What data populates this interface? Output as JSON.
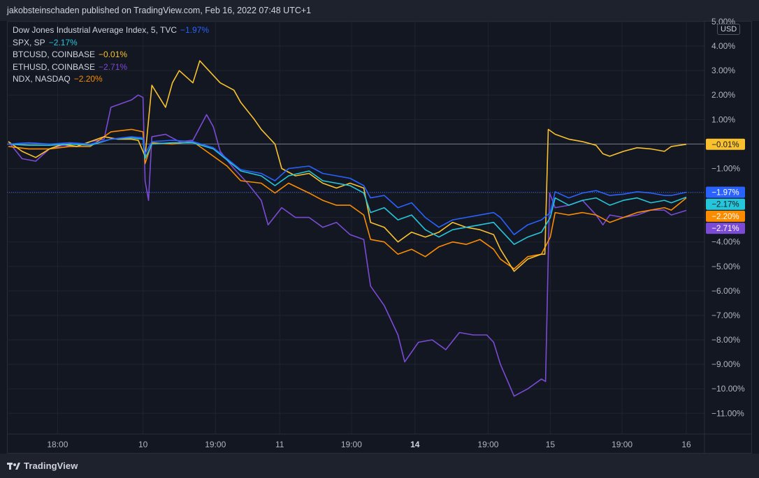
{
  "header": {
    "text": "jakobsteinschaden published on TradingView.com, Feb 16, 2022 07:48 UTC+1"
  },
  "footer": {
    "logo_text": "TradingView"
  },
  "currency_label": "USD",
  "chart_data": {
    "type": "line",
    "ylabel_unit": "%",
    "ylim": [
      -11.9,
      5.0
    ],
    "y_ticks": [
      "5.00%",
      "4.00%",
      "3.00%",
      "2.00%",
      "1.00%",
      "-1.00%",
      "-4.00%",
      "-5.00%",
      "-6.00%",
      "-7.00%",
      "-8.00%",
      "-9.00%",
      "-10.00%",
      "-11.00%"
    ],
    "y_tick_values": [
      5,
      4,
      3,
      2,
      1,
      -1,
      -4,
      -5,
      -6,
      -7,
      -8,
      -9,
      -10,
      -11
    ],
    "x_ticks": [
      {
        "label": "18:00",
        "t": 0.072,
        "bold": false
      },
      {
        "label": "10",
        "t": 0.197,
        "bold": false
      },
      {
        "label": "19:00",
        "t": 0.303,
        "bold": false
      },
      {
        "label": "11",
        "t": 0.397,
        "bold": false
      },
      {
        "label": "19:00",
        "t": 0.502,
        "bold": false
      },
      {
        "label": "14",
        "t": 0.595,
        "bold": true
      },
      {
        "label": "19:00",
        "t": 0.702,
        "bold": false
      },
      {
        "label": "15",
        "t": 0.793,
        "bold": false
      },
      {
        "label": "19:00",
        "t": 0.898,
        "bold": false
      },
      {
        "label": "16",
        "t": 0.992,
        "bold": false
      }
    ],
    "series": [
      {
        "name": "Dow Jones Industrial Average Index, 5, TVC",
        "last_label": "−1.97%",
        "last": -1.97,
        "color": "#2962ff",
        "points": [
          [
            0,
            0
          ],
          [
            0.03,
            0.05
          ],
          [
            0.06,
            0
          ],
          [
            0.09,
            0.05
          ],
          [
            0.12,
            0
          ],
          [
            0.15,
            0.2
          ],
          [
            0.18,
            0.3
          ],
          [
            0.197,
            0.25
          ],
          [
            0.2,
            -0.4
          ],
          [
            0.21,
            0.1
          ],
          [
            0.24,
            0.15
          ],
          [
            0.27,
            0.1
          ],
          [
            0.3,
            -0.15
          ],
          [
            0.32,
            -0.6
          ],
          [
            0.34,
            -1.05
          ],
          [
            0.37,
            -1.2
          ],
          [
            0.39,
            -1.5
          ],
          [
            0.41,
            -1.0
          ],
          [
            0.44,
            -0.9
          ],
          [
            0.46,
            -1.2
          ],
          [
            0.48,
            -1.3
          ],
          [
            0.5,
            -1.4
          ],
          [
            0.52,
            -1.7
          ],
          [
            0.53,
            -2.2
          ],
          [
            0.55,
            -2.1
          ],
          [
            0.57,
            -2.6
          ],
          [
            0.59,
            -2.4
          ],
          [
            0.61,
            -3.0
          ],
          [
            0.63,
            -3.4
          ],
          [
            0.65,
            -3.1
          ],
          [
            0.67,
            -3.0
          ],
          [
            0.69,
            -2.9
          ],
          [
            0.71,
            -2.8
          ],
          [
            0.72,
            -3.0
          ],
          [
            0.74,
            -3.7
          ],
          [
            0.76,
            -3.3
          ],
          [
            0.78,
            -3.1
          ],
          [
            0.793,
            -2.8
          ],
          [
            0.8,
            -1.95
          ],
          [
            0.82,
            -2.2
          ],
          [
            0.84,
            -2.0
          ],
          [
            0.86,
            -1.9
          ],
          [
            0.88,
            -2.1
          ],
          [
            0.9,
            -2.05
          ],
          [
            0.92,
            -1.95
          ],
          [
            0.94,
            -2.0
          ],
          [
            0.96,
            -2.1
          ],
          [
            0.97,
            -2.1
          ],
          [
            0.992,
            -1.97
          ]
        ]
      },
      {
        "name": "SPX, SP",
        "last_label": "−2.17%",
        "last": -2.17,
        "color": "#26c6da",
        "points": [
          [
            0,
            0
          ],
          [
            0.03,
            -0.05
          ],
          [
            0.06,
            -0.05
          ],
          [
            0.09,
            0
          ],
          [
            0.12,
            -0.05
          ],
          [
            0.15,
            0.2
          ],
          [
            0.18,
            0.25
          ],
          [
            0.197,
            0.2
          ],
          [
            0.2,
            -0.6
          ],
          [
            0.21,
            0
          ],
          [
            0.24,
            0.05
          ],
          [
            0.27,
            0.05
          ],
          [
            0.3,
            -0.2
          ],
          [
            0.32,
            -0.65
          ],
          [
            0.34,
            -1.1
          ],
          [
            0.37,
            -1.3
          ],
          [
            0.39,
            -1.7
          ],
          [
            0.41,
            -1.3
          ],
          [
            0.44,
            -1.1
          ],
          [
            0.46,
            -1.5
          ],
          [
            0.48,
            -1.6
          ],
          [
            0.5,
            -1.7
          ],
          [
            0.52,
            -2.0
          ],
          [
            0.53,
            -2.8
          ],
          [
            0.55,
            -2.6
          ],
          [
            0.57,
            -3.1
          ],
          [
            0.59,
            -2.9
          ],
          [
            0.61,
            -3.5
          ],
          [
            0.63,
            -3.8
          ],
          [
            0.65,
            -3.5
          ],
          [
            0.67,
            -3.4
          ],
          [
            0.69,
            -3.3
          ],
          [
            0.71,
            -3.2
          ],
          [
            0.72,
            -3.5
          ],
          [
            0.74,
            -4.1
          ],
          [
            0.76,
            -3.8
          ],
          [
            0.78,
            -3.6
          ],
          [
            0.793,
            -3.0
          ],
          [
            0.8,
            -2.2
          ],
          [
            0.82,
            -2.5
          ],
          [
            0.84,
            -2.3
          ],
          [
            0.86,
            -2.2
          ],
          [
            0.88,
            -2.5
          ],
          [
            0.9,
            -2.3
          ],
          [
            0.92,
            -2.2
          ],
          [
            0.94,
            -2.4
          ],
          [
            0.96,
            -2.3
          ],
          [
            0.97,
            -2.4
          ],
          [
            0.992,
            -2.17
          ]
        ]
      },
      {
        "name": "BTCUSD, COINBASE",
        "last_label": "−0.01%",
        "last": -0.01,
        "color": "#f9c12e",
        "points": [
          [
            0,
            0.1
          ],
          [
            0.02,
            -0.3
          ],
          [
            0.04,
            -0.55
          ],
          [
            0.06,
            -0.2
          ],
          [
            0.08,
            0
          ],
          [
            0.1,
            -0.1
          ],
          [
            0.12,
            0.1
          ],
          [
            0.14,
            0.3
          ],
          [
            0.16,
            0.2
          ],
          [
            0.18,
            0.2
          ],
          [
            0.19,
            0.15
          ],
          [
            0.2,
            -0.5
          ],
          [
            0.21,
            2.4
          ],
          [
            0.23,
            1.5
          ],
          [
            0.24,
            2.5
          ],
          [
            0.25,
            3.0
          ],
          [
            0.27,
            2.5
          ],
          [
            0.28,
            3.4
          ],
          [
            0.29,
            3.1
          ],
          [
            0.3,
            2.8
          ],
          [
            0.31,
            2.5
          ],
          [
            0.33,
            2.2
          ],
          [
            0.34,
            1.7
          ],
          [
            0.36,
            1.0
          ],
          [
            0.37,
            0.6
          ],
          [
            0.39,
            0.0
          ],
          [
            0.4,
            -1.0
          ],
          [
            0.42,
            -1.3
          ],
          [
            0.44,
            -1.2
          ],
          [
            0.46,
            -1.6
          ],
          [
            0.48,
            -1.8
          ],
          [
            0.5,
            -1.6
          ],
          [
            0.52,
            -1.8
          ],
          [
            0.53,
            -3.2
          ],
          [
            0.55,
            -3.4
          ],
          [
            0.57,
            -4.0
          ],
          [
            0.59,
            -3.6
          ],
          [
            0.61,
            -3.8
          ],
          [
            0.63,
            -3.6
          ],
          [
            0.65,
            -3.2
          ],
          [
            0.67,
            -3.4
          ],
          [
            0.69,
            -3.5
          ],
          [
            0.71,
            -3.7
          ],
          [
            0.72,
            -4.3
          ],
          [
            0.74,
            -5.2
          ],
          [
            0.76,
            -4.7
          ],
          [
            0.78,
            -4.5
          ],
          [
            0.785,
            -4.5
          ],
          [
            0.79,
            0.6
          ],
          [
            0.8,
            0.4
          ],
          [
            0.82,
            0.2
          ],
          [
            0.84,
            0.1
          ],
          [
            0.86,
            -0.05
          ],
          [
            0.87,
            -0.4
          ],
          [
            0.88,
            -0.5
          ],
          [
            0.9,
            -0.3
          ],
          [
            0.92,
            -0.15
          ],
          [
            0.94,
            -0.2
          ],
          [
            0.96,
            -0.3
          ],
          [
            0.97,
            -0.1
          ],
          [
            0.992,
            -0.01
          ]
        ]
      },
      {
        "name": "ETHUSD, COINBASE",
        "last_label": "−2.71%",
        "last": -2.71,
        "color": "#7b4bd6",
        "points": [
          [
            0,
            0.1
          ],
          [
            0.02,
            -0.6
          ],
          [
            0.04,
            -0.7
          ],
          [
            0.06,
            -0.2
          ],
          [
            0.08,
            -0.05
          ],
          [
            0.1,
            -0.1
          ],
          [
            0.12,
            0.1
          ],
          [
            0.14,
            0.2
          ],
          [
            0.15,
            1.5
          ],
          [
            0.16,
            1.6
          ],
          [
            0.18,
            1.8
          ],
          [
            0.19,
            2.0
          ],
          [
            0.197,
            1.9
          ],
          [
            0.2,
            -1.5
          ],
          [
            0.205,
            -2.3
          ],
          [
            0.21,
            0.3
          ],
          [
            0.23,
            0.4
          ],
          [
            0.25,
            0.1
          ],
          [
            0.27,
            0.15
          ],
          [
            0.29,
            1.2
          ],
          [
            0.3,
            0.7
          ],
          [
            0.31,
            -0.3
          ],
          [
            0.33,
            -1.0
          ],
          [
            0.35,
            -1.6
          ],
          [
            0.37,
            -2.3
          ],
          [
            0.38,
            -3.3
          ],
          [
            0.4,
            -2.6
          ],
          [
            0.42,
            -3.0
          ],
          [
            0.44,
            -3.0
          ],
          [
            0.46,
            -3.4
          ],
          [
            0.48,
            -3.2
          ],
          [
            0.5,
            -3.7
          ],
          [
            0.52,
            -3.9
          ],
          [
            0.53,
            -5.8
          ],
          [
            0.55,
            -6.6
          ],
          [
            0.57,
            -7.8
          ],
          [
            0.58,
            -8.9
          ],
          [
            0.6,
            -8.1
          ],
          [
            0.62,
            -8.0
          ],
          [
            0.64,
            -8.4
          ],
          [
            0.66,
            -7.7
          ],
          [
            0.68,
            -7.8
          ],
          [
            0.7,
            -7.8
          ],
          [
            0.71,
            -8.1
          ],
          [
            0.72,
            -9.0
          ],
          [
            0.74,
            -10.3
          ],
          [
            0.76,
            -10.0
          ],
          [
            0.78,
            -9.6
          ],
          [
            0.786,
            -9.7
          ],
          [
            0.792,
            -2.0
          ],
          [
            0.8,
            -2.6
          ],
          [
            0.82,
            -2.5
          ],
          [
            0.84,
            -2.3
          ],
          [
            0.86,
            -2.9
          ],
          [
            0.87,
            -3.3
          ],
          [
            0.88,
            -2.9
          ],
          [
            0.9,
            -3.0
          ],
          [
            0.92,
            -2.9
          ],
          [
            0.94,
            -2.7
          ],
          [
            0.96,
            -2.7
          ],
          [
            0.97,
            -2.9
          ],
          [
            0.992,
            -2.71
          ]
        ]
      },
      {
        "name": "NDX, NASDAQ",
        "last_label": "−2.20%",
        "last": -2.2,
        "color": "#fb8c00",
        "points": [
          [
            0,
            -0.1
          ],
          [
            0.03,
            -0.2
          ],
          [
            0.06,
            -0.2
          ],
          [
            0.09,
            -0.1
          ],
          [
            0.12,
            -0.1
          ],
          [
            0.15,
            0.5
          ],
          [
            0.18,
            0.6
          ],
          [
            0.197,
            0.5
          ],
          [
            0.2,
            -0.8
          ],
          [
            0.21,
            0.05
          ],
          [
            0.24,
            0.0
          ],
          [
            0.27,
            0.1
          ],
          [
            0.3,
            -0.5
          ],
          [
            0.32,
            -0.9
          ],
          [
            0.34,
            -1.5
          ],
          [
            0.37,
            -1.6
          ],
          [
            0.39,
            -2.0
          ],
          [
            0.41,
            -1.6
          ],
          [
            0.44,
            -2.0
          ],
          [
            0.46,
            -2.3
          ],
          [
            0.48,
            -2.5
          ],
          [
            0.5,
            -2.5
          ],
          [
            0.52,
            -2.9
          ],
          [
            0.53,
            -3.9
          ],
          [
            0.55,
            -4.0
          ],
          [
            0.57,
            -4.5
          ],
          [
            0.59,
            -4.3
          ],
          [
            0.61,
            -4.6
          ],
          [
            0.63,
            -4.2
          ],
          [
            0.65,
            -4.0
          ],
          [
            0.67,
            -4.1
          ],
          [
            0.69,
            -3.9
          ],
          [
            0.71,
            -4.3
          ],
          [
            0.72,
            -4.7
          ],
          [
            0.74,
            -5.1
          ],
          [
            0.76,
            -4.6
          ],
          [
            0.78,
            -4.5
          ],
          [
            0.793,
            -3.8
          ],
          [
            0.8,
            -2.8
          ],
          [
            0.82,
            -2.9
          ],
          [
            0.84,
            -2.8
          ],
          [
            0.86,
            -2.9
          ],
          [
            0.88,
            -3.2
          ],
          [
            0.9,
            -3.0
          ],
          [
            0.92,
            -2.8
          ],
          [
            0.94,
            -2.7
          ],
          [
            0.96,
            -2.6
          ],
          [
            0.97,
            -2.7
          ],
          [
            0.992,
            -2.2
          ]
        ]
      }
    ],
    "zero_line": 0,
    "grid": true,
    "legend_position": "top-left",
    "badge_order": [
      "Dow Jones Industrial Average Index, 5, TVC",
      "SPX, SP",
      "NDX, NASDAQ",
      "ETHUSD, COINBASE"
    ]
  }
}
